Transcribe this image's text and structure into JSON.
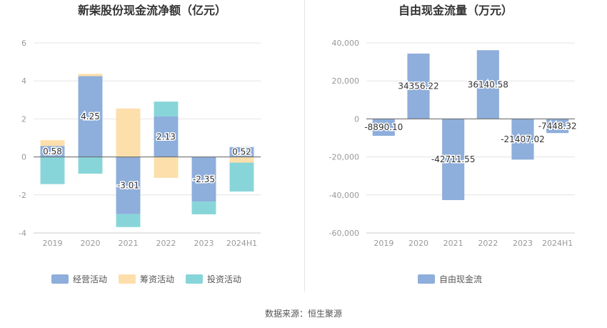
{
  "footer": {
    "source": "数据来源：恒生聚源"
  },
  "colors": {
    "operating": "#8eaedb",
    "financing": "#fddfab",
    "investing": "#88d5d9",
    "fcf": "#8eaedb",
    "grid": "#e3e3e3",
    "axis": "#999999",
    "title": "#333333"
  },
  "chart_data": [
    {
      "type": "bar",
      "stacked": true,
      "title": "新柴股份现金流净额（亿元）",
      "categories": [
        "2019",
        "2020",
        "2021",
        "2022",
        "2023",
        "2024H1"
      ],
      "ylim": [
        -4,
        6
      ],
      "yticks": [
        "6",
        "4",
        "2",
        "0",
        "-2",
        "-4"
      ],
      "legend_position": "bottom",
      "series": [
        {
          "name": "经营活动",
          "key": "operating",
          "values": [
            0.58,
            4.25,
            -3.01,
            2.13,
            -2.35,
            0.52
          ]
        },
        {
          "name": "筹资活动",
          "key": "financing",
          "values": [
            0.3,
            0.12,
            2.55,
            -1.1,
            0.0,
            -0.3
          ]
        },
        {
          "name": "投资活动",
          "key": "investing",
          "values": [
            -1.43,
            -0.88,
            -0.68,
            0.78,
            -0.67,
            -1.52
          ]
        }
      ],
      "data_labels": [
        "0.58",
        "4.25",
        "-3.01",
        "2.13",
        "-2.35",
        "0.52"
      ]
    },
    {
      "type": "bar",
      "title": "自由现金流量（万元）",
      "categories": [
        "2019",
        "2020",
        "2021",
        "2022",
        "2023",
        "2024H1"
      ],
      "ylim": [
        -60000,
        40000
      ],
      "yticks": [
        "40,000",
        "20,000",
        "0",
        "-20,000",
        "-40,000",
        "-60,000"
      ],
      "legend_position": "bottom",
      "series": [
        {
          "name": "自由现金流",
          "key": "fcf",
          "values": [
            -8890.1,
            34356.22,
            -42711.55,
            36140.58,
            -21407.02,
            -7448.32
          ]
        }
      ],
      "data_labels": [
        "-8890.10",
        "34356.22",
        "-42711.55",
        "36140.58",
        "-21407.02",
        "-7448.32"
      ]
    }
  ]
}
